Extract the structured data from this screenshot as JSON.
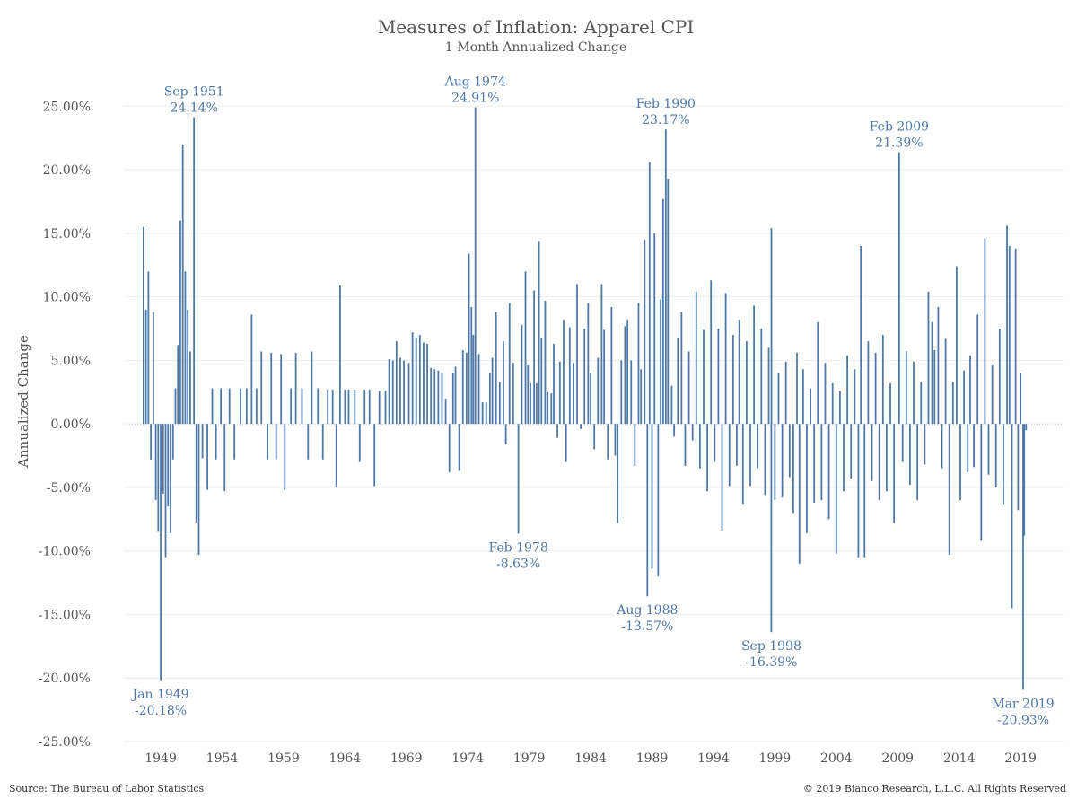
{
  "chart_data": {
    "type": "bar",
    "title": "Measures of Inflation: Apparel CPI",
    "subtitle": "1-Month Annualized Change",
    "ylabel": "Annualized Change",
    "xlabel": "",
    "ylim": [
      -25,
      27
    ],
    "xlim": [
      1946,
      2022.5
    ],
    "y_ticks": [
      25,
      20,
      15,
      10,
      5,
      0,
      -5,
      -10,
      -15,
      -20,
      -25
    ],
    "y_tick_labels": [
      "25.00%",
      "20.00%",
      "15.00%",
      "10.00%",
      "5.00%",
      "0.00%",
      "-5.00%",
      "-10.00%",
      "-15.00%",
      "-20.00%",
      "-25.00%"
    ],
    "x_ticks": [
      1949,
      1954,
      1959,
      1964,
      1969,
      1974,
      1979,
      1984,
      1989,
      1994,
      1999,
      2004,
      2009,
      2014,
      2019
    ],
    "x_tick_labels": [
      "1949",
      "1954",
      "1959",
      "1964",
      "1969",
      "1974",
      "1979",
      "1984",
      "1989",
      "1994",
      "1999",
      "2004",
      "2009",
      "2014",
      "2019"
    ],
    "grid": "horizontal",
    "bar_color": "#4e79a7",
    "series": [
      {
        "values": [
          [
            1947.6,
            15.5
          ],
          [
            1947.8,
            9.0
          ],
          [
            1948.0,
            12.0
          ],
          [
            1948.2,
            -2.8
          ],
          [
            1948.4,
            8.8
          ],
          [
            1948.6,
            -6.0
          ],
          [
            1948.8,
            -8.5
          ],
          [
            1949.0,
            -20.18
          ],
          [
            1949.2,
            -5.5
          ],
          [
            1949.4,
            -10.5
          ],
          [
            1949.6,
            -6.5
          ],
          [
            1949.8,
            -8.6
          ],
          [
            1950.0,
            -2.8
          ],
          [
            1950.2,
            2.8
          ],
          [
            1950.4,
            6.2
          ],
          [
            1950.6,
            16.0
          ],
          [
            1950.8,
            22.0
          ],
          [
            1951.0,
            12.0
          ],
          [
            1951.2,
            9.0
          ],
          [
            1951.4,
            5.7
          ],
          [
            1951.71,
            24.14
          ],
          [
            1951.9,
            -7.8
          ],
          [
            1952.1,
            -10.3
          ],
          [
            1952.4,
            -2.7
          ],
          [
            1952.8,
            -5.2
          ],
          [
            1953.2,
            2.8
          ],
          [
            1953.5,
            -2.8
          ],
          [
            1953.9,
            2.8
          ],
          [
            1954.2,
            -5.3
          ],
          [
            1954.6,
            2.8
          ],
          [
            1955.0,
            -2.8
          ],
          [
            1955.5,
            2.8
          ],
          [
            1956.0,
            2.8
          ],
          [
            1956.4,
            8.6
          ],
          [
            1956.8,
            2.8
          ],
          [
            1957.2,
            5.7
          ],
          [
            1957.7,
            -2.8
          ],
          [
            1958.0,
            5.6
          ],
          [
            1958.4,
            -2.8
          ],
          [
            1958.8,
            5.5
          ],
          [
            1959.1,
            -5.2
          ],
          [
            1959.6,
            2.8
          ],
          [
            1960.0,
            5.6
          ],
          [
            1960.5,
            2.8
          ],
          [
            1961.0,
            -2.8
          ],
          [
            1961.3,
            5.7
          ],
          [
            1961.8,
            2.8
          ],
          [
            1962.2,
            -2.8
          ],
          [
            1962.6,
            2.7
          ],
          [
            1963.0,
            2.7
          ],
          [
            1963.3,
            -5.0
          ],
          [
            1963.6,
            10.9
          ],
          [
            1964.0,
            2.7
          ],
          [
            1964.3,
            2.7
          ],
          [
            1964.8,
            2.7
          ],
          [
            1965.2,
            -3.0
          ],
          [
            1965.6,
            2.7
          ],
          [
            1966.0,
            2.7
          ],
          [
            1966.4,
            -4.9
          ],
          [
            1966.8,
            2.6
          ],
          [
            1967.3,
            2.6
          ],
          [
            1967.6,
            5.1
          ],
          [
            1967.9,
            5.0
          ],
          [
            1968.2,
            6.5
          ],
          [
            1968.5,
            5.2
          ],
          [
            1968.8,
            5.0
          ],
          [
            1969.2,
            4.8
          ],
          [
            1969.5,
            7.2
          ],
          [
            1969.8,
            6.8
          ],
          [
            1970.1,
            7.0
          ],
          [
            1970.4,
            6.4
          ],
          [
            1970.7,
            6.3
          ],
          [
            1971.0,
            4.4
          ],
          [
            1971.3,
            4.3
          ],
          [
            1971.6,
            4.2
          ],
          [
            1971.9,
            4.0
          ],
          [
            1972.2,
            2.0
          ],
          [
            1972.5,
            -3.8
          ],
          [
            1972.8,
            4.0
          ],
          [
            1973.0,
            4.5
          ],
          [
            1973.3,
            -3.7
          ],
          [
            1973.6,
            5.8
          ],
          [
            1973.9,
            5.6
          ],
          [
            1974.1,
            13.4
          ],
          [
            1974.3,
            9.2
          ],
          [
            1974.45,
            7.0
          ],
          [
            1974.62,
            24.91
          ],
          [
            1974.9,
            5.5
          ],
          [
            1975.2,
            1.7
          ],
          [
            1975.5,
            1.7
          ],
          [
            1975.8,
            4.0
          ],
          [
            1976.0,
            5.2
          ],
          [
            1976.3,
            8.8
          ],
          [
            1976.6,
            3.3
          ],
          [
            1976.9,
            6.5
          ],
          [
            1977.1,
            -1.6
          ],
          [
            1977.4,
            9.5
          ],
          [
            1977.7,
            4.8
          ],
          [
            1978.12,
            -8.63
          ],
          [
            1978.4,
            7.8
          ],
          [
            1978.7,
            12.0
          ],
          [
            1978.9,
            4.6
          ],
          [
            1979.1,
            3.2
          ],
          [
            1979.4,
            10.5
          ],
          [
            1979.6,
            3.2
          ],
          [
            1979.8,
            14.4
          ],
          [
            1980.0,
            6.8
          ],
          [
            1980.3,
            9.7
          ],
          [
            1980.5,
            2.5
          ],
          [
            1980.8,
            2.4
          ],
          [
            1981.0,
            6.3
          ],
          [
            1981.3,
            -1.1
          ],
          [
            1981.5,
            4.9
          ],
          [
            1981.8,
            8.2
          ],
          [
            1982.0,
            -3.0
          ],
          [
            1982.3,
            7.6
          ],
          [
            1982.6,
            4.8
          ],
          [
            1982.9,
            11.0
          ],
          [
            1983.2,
            -0.4
          ],
          [
            1983.5,
            7.5
          ],
          [
            1983.8,
            9.5
          ],
          [
            1984.0,
            4.0
          ],
          [
            1984.3,
            -2.0
          ],
          [
            1984.6,
            5.2
          ],
          [
            1984.9,
            11.0
          ],
          [
            1985.1,
            7.4
          ],
          [
            1985.4,
            -2.8
          ],
          [
            1985.7,
            9.2
          ],
          [
            1986.0,
            -2.5
          ],
          [
            1986.2,
            -7.8
          ],
          [
            1986.5,
            5.0
          ],
          [
            1986.8,
            7.7
          ],
          [
            1987.0,
            8.2
          ],
          [
            1987.3,
            5.0
          ],
          [
            1987.6,
            -3.3
          ],
          [
            1987.9,
            9.5
          ],
          [
            1988.1,
            4.3
          ],
          [
            1988.4,
            14.5
          ],
          [
            1988.62,
            -13.57
          ],
          [
            1988.8,
            20.6
          ],
          [
            1989.0,
            -11.4
          ],
          [
            1989.2,
            15.0
          ],
          [
            1989.5,
            -12.0
          ],
          [
            1989.7,
            9.8
          ],
          [
            1989.9,
            17.7
          ],
          [
            1990.12,
            23.17
          ],
          [
            1990.3,
            19.3
          ],
          [
            1990.6,
            3.0
          ],
          [
            1990.8,
            -1.0
          ],
          [
            1991.1,
            6.8
          ],
          [
            1991.4,
            8.8
          ],
          [
            1991.7,
            -3.3
          ],
          [
            1992.0,
            5.7
          ],
          [
            1992.3,
            -1.3
          ],
          [
            1992.6,
            10.4
          ],
          [
            1992.9,
            -3.5
          ],
          [
            1993.2,
            7.4
          ],
          [
            1993.5,
            -5.3
          ],
          [
            1993.8,
            11.3
          ],
          [
            1994.1,
            -3.0
          ],
          [
            1994.4,
            7.5
          ],
          [
            1994.7,
            -8.4
          ],
          [
            1995.0,
            10.3
          ],
          [
            1995.3,
            -4.9
          ],
          [
            1995.6,
            7.0
          ],
          [
            1995.9,
            -3.3
          ],
          [
            1996.1,
            8.2
          ],
          [
            1996.4,
            -6.3
          ],
          [
            1996.7,
            6.5
          ],
          [
            1997.0,
            -4.9
          ],
          [
            1997.3,
            9.3
          ],
          [
            1997.6,
            -3.5
          ],
          [
            1997.9,
            7.5
          ],
          [
            1998.2,
            -5.6
          ],
          [
            1998.5,
            6.0
          ],
          [
            1998.71,
            -16.39
          ],
          [
            1998.72,
            15.4
          ],
          [
            1999.0,
            -6.0
          ],
          [
            1999.3,
            4.0
          ],
          [
            1999.6,
            -5.8
          ],
          [
            1999.9,
            4.9
          ],
          [
            2000.2,
            -4.2
          ],
          [
            2000.5,
            -7.0
          ],
          [
            2000.8,
            5.6
          ],
          [
            2001.0,
            -11.0
          ],
          [
            2001.3,
            4.3
          ],
          [
            2001.6,
            -8.6
          ],
          [
            2001.9,
            2.8
          ],
          [
            2002.2,
            -6.2
          ],
          [
            2002.5,
            8.0
          ],
          [
            2002.8,
            -6.0
          ],
          [
            2003.1,
            4.8
          ],
          [
            2003.4,
            -7.5
          ],
          [
            2003.7,
            3.2
          ],
          [
            2004.0,
            -10.2
          ],
          [
            2004.3,
            2.6
          ],
          [
            2004.6,
            -5.3
          ],
          [
            2004.9,
            5.4
          ],
          [
            2005.2,
            -4.3
          ],
          [
            2005.5,
            4.3
          ],
          [
            2005.8,
            -10.5
          ],
          [
            2006.0,
            14.0
          ],
          [
            2006.3,
            -10.5
          ],
          [
            2006.6,
            6.5
          ],
          [
            2006.9,
            -4.5
          ],
          [
            2007.2,
            5.6
          ],
          [
            2007.5,
            -6.0
          ],
          [
            2007.8,
            7.0
          ],
          [
            2008.1,
            -5.3
          ],
          [
            2008.4,
            3.2
          ],
          [
            2008.7,
            -7.8
          ],
          [
            2009.12,
            21.39
          ],
          [
            2009.4,
            -3.0
          ],
          [
            2009.7,
            5.7
          ],
          [
            2010.0,
            -4.8
          ],
          [
            2010.3,
            4.9
          ],
          [
            2010.6,
            -6.0
          ],
          [
            2010.9,
            3.3
          ],
          [
            2011.2,
            -3.2
          ],
          [
            2011.5,
            10.4
          ],
          [
            2011.8,
            8.0
          ],
          [
            2012.0,
            5.8
          ],
          [
            2012.3,
            9.2
          ],
          [
            2012.6,
            -3.5
          ],
          [
            2012.9,
            6.7
          ],
          [
            2013.2,
            -10.3
          ],
          [
            2013.5,
            3.3
          ],
          [
            2013.8,
            12.4
          ],
          [
            2014.1,
            -6.0
          ],
          [
            2014.4,
            4.2
          ],
          [
            2014.7,
            -3.8
          ],
          [
            2014.9,
            5.4
          ],
          [
            2015.2,
            -3.4
          ],
          [
            2015.5,
            8.6
          ],
          [
            2015.8,
            -9.2
          ],
          [
            2016.1,
            14.6
          ],
          [
            2016.4,
            -4.0
          ],
          [
            2016.7,
            4.6
          ],
          [
            2017.0,
            -5.0
          ],
          [
            2017.3,
            7.5
          ],
          [
            2017.6,
            -6.3
          ],
          [
            2017.9,
            15.6
          ],
          [
            2018.1,
            14.0
          ],
          [
            2018.3,
            -14.5
          ],
          [
            2018.6,
            13.8
          ],
          [
            2018.8,
            -6.8
          ],
          [
            2019.0,
            4.0
          ],
          [
            2019.21,
            -20.93
          ],
          [
            2019.3,
            -8.8
          ],
          [
            2019.45,
            -0.5
          ]
        ]
      }
    ],
    "annotations": [
      {
        "x": 1951.71,
        "y": 24.14,
        "date": "Sep 1951",
        "label": "24.14%",
        "pos": "above"
      },
      {
        "x": 1974.62,
        "y": 24.91,
        "date": "Aug 1974",
        "label": "24.91%",
        "pos": "above"
      },
      {
        "x": 1990.12,
        "y": 23.17,
        "date": "Feb 1990",
        "label": "23.17%",
        "pos": "above"
      },
      {
        "x": 2009.12,
        "y": 21.39,
        "date": "Feb 2009",
        "label": "21.39%",
        "pos": "above"
      },
      {
        "x": 1949.0,
        "y": -20.18,
        "date": "Jan 1949",
        "label": "-20.18%",
        "pos": "below"
      },
      {
        "x": 1978.12,
        "y": -8.63,
        "date": "Feb 1978",
        "label": "-8.63%",
        "pos": "below"
      },
      {
        "x": 1988.62,
        "y": -13.57,
        "date": "Aug 1988",
        "label": "-13.57%",
        "pos": "below"
      },
      {
        "x": 1998.71,
        "y": -16.39,
        "date": "Sep 1998",
        "label": "-16.39%",
        "pos": "below"
      },
      {
        "x": 2019.21,
        "y": -20.93,
        "date": "Mar 2019",
        "label": "-20.93%",
        "pos": "below"
      }
    ]
  },
  "footer": {
    "source": "Source: The Bureau of Labor Statistics",
    "copyright": "© 2019 Bianco Research, L.L.C. All Rights Reserved"
  }
}
